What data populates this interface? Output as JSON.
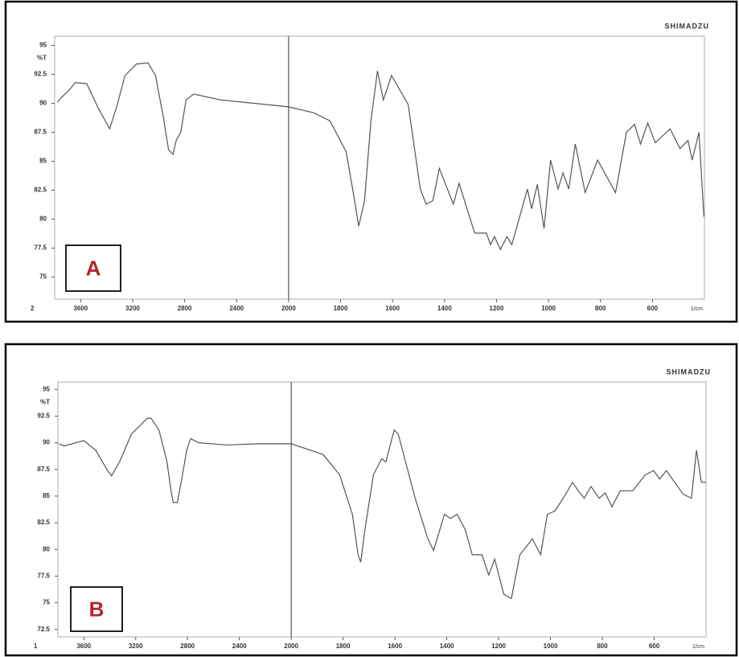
{
  "chart_data": [
    {
      "type": "line",
      "label": "A",
      "brand": "SHIMADZU",
      "ylabel": "%T",
      "xlabel": "1/cm",
      "corner": "2",
      "color": "#555555",
      "x_break": 2000,
      "xlim": [
        3800,
        400
      ],
      "xticks": [
        3600,
        3200,
        2800,
        2400,
        2000,
        1800,
        1600,
        1400,
        1200,
        1000,
        800,
        600
      ],
      "ylim": [
        73.1,
        95.8
      ],
      "yticks": [
        95,
        92.5,
        90,
        87.5,
        85,
        82.5,
        80,
        77.5,
        75
      ],
      "x": [
        3780,
        3740,
        3700,
        3641,
        3553,
        3465,
        3377,
        3318,
        3259,
        3171,
        3082,
        3024,
        2965,
        2924,
        2889,
        2865,
        2830,
        2789,
        2730,
        2524,
        2348,
        2171,
        2000,
        1905,
        1841,
        1778,
        1746,
        1730,
        1708,
        1683,
        1658,
        1635,
        1604,
        1540,
        1493,
        1471,
        1445,
        1420,
        1366,
        1344,
        1284,
        1239,
        1223,
        1208,
        1185,
        1160,
        1141,
        1081,
        1065,
        1043,
        1017,
        992,
        963,
        944,
        922,
        897,
        859,
        811,
        742,
        700,
        669,
        646,
        618,
        589,
        532,
        494,
        463,
        447,
        421,
        402
      ],
      "values": [
        90.1,
        90.6,
        91.0,
        91.8,
        91.7,
        89.6,
        87.8,
        89.9,
        92.4,
        93.4,
        93.5,
        92.4,
        88.9,
        86.0,
        85.6,
        86.8,
        87.5,
        90.3,
        90.8,
        90.3,
        90.1,
        89.9,
        89.7,
        89.2,
        88.5,
        85.8,
        81.6,
        79.4,
        81.6,
        88.5,
        92.8,
        90.3,
        92.4,
        89.9,
        82.6,
        81.3,
        81.6,
        84.4,
        81.3,
        83.1,
        78.8,
        78.8,
        77.8,
        78.5,
        77.4,
        78.5,
        77.8,
        82.6,
        80.9,
        83.0,
        79.2,
        85.1,
        82.6,
        84.0,
        82.6,
        86.5,
        82.3,
        85.1,
        82.3,
        87.5,
        88.2,
        86.5,
        88.3,
        86.6,
        87.8,
        86.1,
        86.8,
        85.1,
        87.5,
        80.2
      ]
    },
    {
      "type": "line",
      "label": "B",
      "brand": "SHIMADZU",
      "ylabel": "%T",
      "xlabel": "1/cm",
      "corner": "1",
      "color": "#555555",
      "x_break": 2000,
      "xlim": [
        3800,
        400
      ],
      "xticks": [
        3600,
        3200,
        2800,
        2400,
        2000,
        1800,
        1600,
        1400,
        1200,
        1000,
        800,
        600
      ],
      "ylim": [
        71.8,
        95.7
      ],
      "yticks": [
        95,
        92.5,
        90,
        87.5,
        85,
        82.5,
        80,
        77.5,
        75,
        72.5
      ],
      "x": [
        3790,
        3753,
        3661,
        3600,
        3508,
        3417,
        3386,
        3325,
        3233,
        3111,
        3081,
        3020,
        2958,
        2928,
        2910,
        2879,
        2849,
        2806,
        2776,
        2714,
        2500,
        2256,
        2000,
        1877,
        1813,
        1764,
        1742,
        1732,
        1716,
        1683,
        1651,
        1635,
        1603,
        1587,
        1522,
        1473,
        1451,
        1409,
        1386,
        1360,
        1328,
        1302,
        1264,
        1238,
        1215,
        1180,
        1151,
        1118,
        1092,
        1070,
        1038,
        1012,
        983,
        941,
        915,
        893,
        870,
        844,
        812,
        789,
        763,
        731,
        683,
        634,
        602,
        579,
        553,
        521,
        489,
        456,
        437,
        418,
        400
      ],
      "values": [
        89.9,
        89.7,
        90.0,
        90.2,
        89.3,
        87.4,
        86.9,
        88.2,
        90.8,
        92.3,
        92.3,
        91.2,
        88.2,
        85.5,
        84.4,
        84.4,
        86.3,
        89.3,
        90.4,
        90.0,
        89.8,
        89.9,
        89.9,
        88.9,
        87.0,
        83.3,
        79.5,
        78.8,
        81.8,
        87.0,
        88.5,
        88.2,
        91.2,
        90.8,
        84.8,
        81.0,
        79.9,
        83.3,
        82.9,
        83.3,
        81.8,
        79.5,
        79.5,
        77.6,
        79.1,
        75.8,
        75.4,
        79.5,
        80.3,
        81.0,
        79.5,
        83.3,
        83.6,
        85.2,
        86.3,
        85.5,
        84.8,
        85.9,
        84.8,
        85.3,
        84.0,
        85.5,
        85.5,
        87.0,
        87.4,
        86.6,
        87.4,
        86.3,
        85.2,
        84.8,
        89.3,
        86.3,
        86.3
      ]
    }
  ]
}
